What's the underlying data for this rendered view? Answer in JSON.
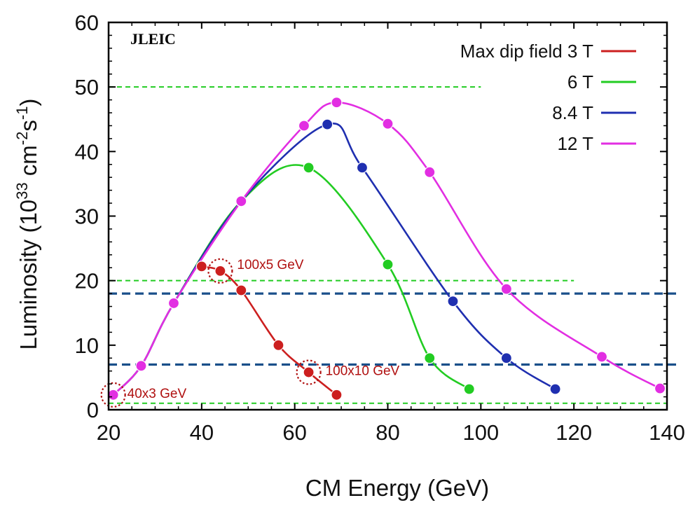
{
  "chart_data": {
    "type": "line",
    "title": "",
    "tag": "JLEIC",
    "xlabel": "CM Energy (GeV)",
    "ylabel_main": "Luminosity (10",
    "ylabel_exp": "33",
    "ylabel_unit": " cm",
    "ylabel_unit_exp": "-2",
    "ylabel_s": "s",
    "ylabel_s_exp": "-1",
    "ylabel_close": ")",
    "xlim": [
      20,
      140
    ],
    "ylim": [
      0,
      60
    ],
    "xticks": [
      "20",
      "40",
      "60",
      "80",
      "100",
      "120",
      "140"
    ],
    "yticks": [
      "0",
      "10",
      "20",
      "30",
      "40",
      "50",
      "60"
    ],
    "legend_position": "top-right",
    "series": [
      {
        "name": "Max dip field 3 T",
        "color": "#cc1f1f",
        "points": [
          [
            40,
            22.2
          ],
          [
            44,
            21.5
          ],
          [
            48.5,
            18.5
          ],
          [
            56.5,
            10.0
          ],
          [
            63,
            5.8
          ],
          [
            69,
            2.3
          ]
        ]
      },
      {
        "name": "6 T",
        "color": "#22cc22",
        "points": [
          [
            21,
            2.3
          ],
          [
            27,
            6.8
          ],
          [
            34,
            16.5
          ],
          [
            48.5,
            32.3
          ],
          [
            63,
            37.5
          ],
          [
            80,
            22.5
          ],
          [
            89,
            8.0
          ],
          [
            97.5,
            3.2
          ]
        ]
      },
      {
        "name": "8.4 T",
        "color": "#1f2fb0",
        "points": [
          [
            21,
            2.3
          ],
          [
            27,
            6.8
          ],
          [
            34,
            16.5
          ],
          [
            48.5,
            32.3
          ],
          [
            67,
            44.2
          ],
          [
            74.5,
            37.5
          ],
          [
            94,
            16.8
          ],
          [
            105.5,
            8.0
          ],
          [
            116,
            3.2
          ]
        ]
      },
      {
        "name": "12 T",
        "color": "#e22ee2",
        "points": [
          [
            21,
            2.3
          ],
          [
            27,
            6.8
          ],
          [
            34,
            16.5
          ],
          [
            48.5,
            32.3
          ],
          [
            62,
            44.0
          ],
          [
            69,
            47.6
          ],
          [
            80,
            44.3
          ],
          [
            89,
            36.8
          ],
          [
            105.5,
            18.7
          ],
          [
            126,
            8.2
          ],
          [
            138.5,
            3.3
          ]
        ]
      }
    ],
    "reference_lines": [
      {
        "y": 50,
        "x_from": 20,
        "x_to": 100,
        "color": "#22cc22",
        "style": "dashed-thin"
      },
      {
        "y": 20,
        "x_from": 20,
        "x_to": 120,
        "color": "#22cc22",
        "style": "dashed-thin"
      },
      {
        "y": 1,
        "x_from": 20,
        "x_to": 140,
        "color": "#22cc22",
        "style": "dashed-thin"
      },
      {
        "y": 18,
        "x_from": 20,
        "x_to": 142,
        "color": "#1a4f8a",
        "style": "dashed-thick"
      },
      {
        "y": 7,
        "x_from": 20,
        "x_to": 142,
        "color": "#1a4f8a",
        "style": "dashed-thick"
      }
    ],
    "annotations": [
      {
        "label": "100x5 GeV",
        "x": 44,
        "y": 21.5,
        "color": "#b01010"
      },
      {
        "label": "100x10 GeV",
        "x": 63,
        "y": 5.8,
        "color": "#b01010"
      },
      {
        "label": "40x3 GeV",
        "x": 21,
        "y": 2.3,
        "color": "#b01010"
      }
    ]
  }
}
